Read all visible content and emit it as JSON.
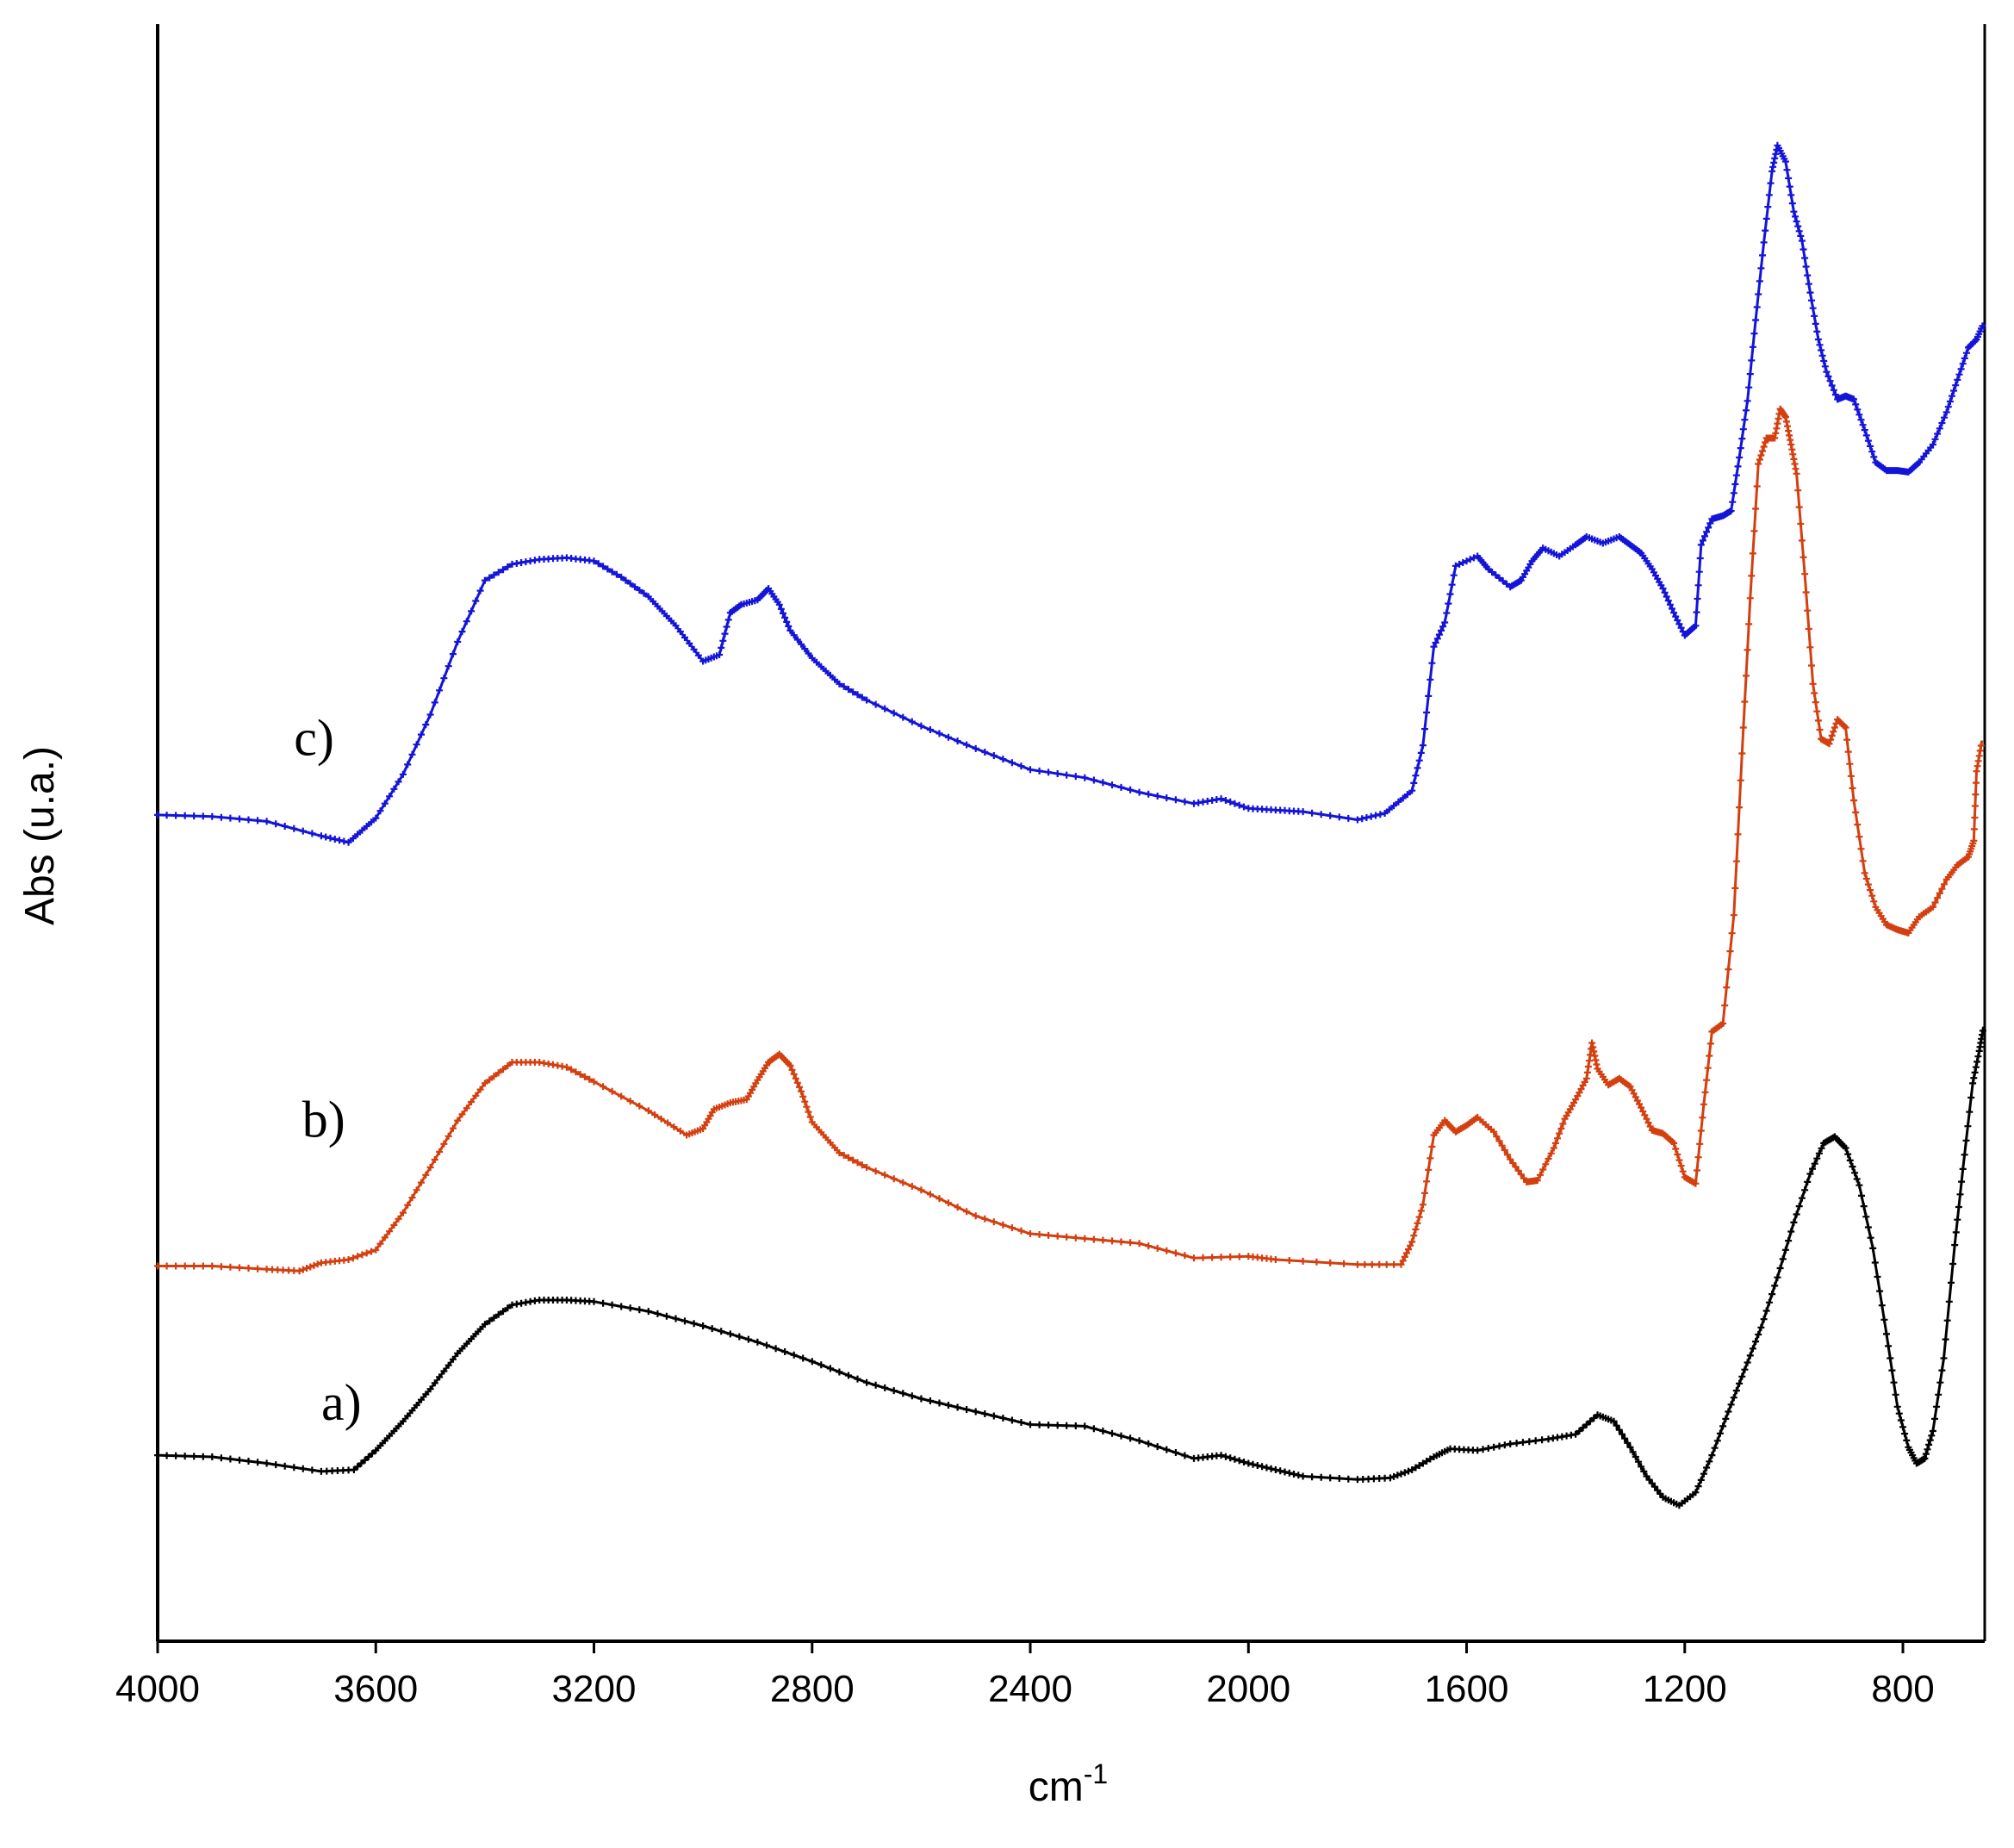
{
  "chart_data": {
    "type": "line",
    "xlabel": "cm",
    "xlabel_sup": "-1",
    "ylabel": "Abs (u.a.)",
    "xlim": [
      4000,
      650
    ],
    "x_reversed": true,
    "ylim": [
      0,
      100
    ],
    "x_ticks": [
      4000,
      3600,
      3200,
      2800,
      2400,
      2000,
      1600,
      1200,
      800
    ],
    "grid": false,
    "y_tick_labels": false,
    "series": [
      {
        "label": "a)",
        "color": "#000000",
        "label_pos": [
          3700,
          13.7
        ],
        "points": [
          [
            4000,
            11.5
          ],
          [
            3900,
            11.4
          ],
          [
            3800,
            11.0
          ],
          [
            3700,
            10.5
          ],
          [
            3640,
            10.6
          ],
          [
            3600,
            11.8
          ],
          [
            3550,
            13.6
          ],
          [
            3500,
            15.6
          ],
          [
            3450,
            17.8
          ],
          [
            3400,
            19.6
          ],
          [
            3350,
            20.8
          ],
          [
            3300,
            21.1
          ],
          [
            3250,
            21.1
          ],
          [
            3200,
            21.0
          ],
          [
            3100,
            20.4
          ],
          [
            3000,
            19.5
          ],
          [
            2900,
            18.5
          ],
          [
            2800,
            17.3
          ],
          [
            2700,
            16.0
          ],
          [
            2600,
            15.0
          ],
          [
            2500,
            14.2
          ],
          [
            2400,
            13.4
          ],
          [
            2300,
            13.3
          ],
          [
            2200,
            12.4
          ],
          [
            2100,
            11.3
          ],
          [
            2050,
            11.5
          ],
          [
            2000,
            11.0
          ],
          [
            1950,
            10.6
          ],
          [
            1900,
            10.2
          ],
          [
            1800,
            10.0
          ],
          [
            1740,
            10.1
          ],
          [
            1700,
            10.6
          ],
          [
            1660,
            11.4
          ],
          [
            1630,
            11.9
          ],
          [
            1580,
            11.8
          ],
          [
            1520,
            12.2
          ],
          [
            1450,
            12.5
          ],
          [
            1400,
            12.8
          ],
          [
            1360,
            14.0
          ],
          [
            1330,
            13.6
          ],
          [
            1300,
            12.0
          ],
          [
            1270,
            10.2
          ],
          [
            1240,
            8.9
          ],
          [
            1210,
            8.4
          ],
          [
            1180,
            9.2
          ],
          [
            1150,
            11.5
          ],
          [
            1120,
            14.2
          ],
          [
            1090,
            16.8
          ],
          [
            1060,
            19.4
          ],
          [
            1030,
            22.5
          ],
          [
            1000,
            25.9
          ],
          [
            970,
            28.9
          ],
          [
            945,
            30.8
          ],
          [
            925,
            31.2
          ],
          [
            905,
            30.5
          ],
          [
            880,
            28.2
          ],
          [
            855,
            24.3
          ],
          [
            830,
            19.0
          ],
          [
            810,
            14.5
          ],
          [
            790,
            12.0
          ],
          [
            775,
            11.0
          ],
          [
            760,
            11.3
          ],
          [
            745,
            13.0
          ],
          [
            725,
            17.5
          ],
          [
            705,
            24.5
          ],
          [
            690,
            29.2
          ],
          [
            672,
            34.5
          ],
          [
            660,
            36.5
          ],
          [
            652,
            38.0
          ]
        ]
      },
      {
        "label": "b)",
        "color": "#d33f0f",
        "label_pos": [
          3735,
          31.2
        ],
        "points": [
          [
            4000,
            23.2
          ],
          [
            3900,
            23.2
          ],
          [
            3800,
            23.0
          ],
          [
            3740,
            22.9
          ],
          [
            3700,
            23.4
          ],
          [
            3650,
            23.6
          ],
          [
            3600,
            24.2
          ],
          [
            3550,
            26.5
          ],
          [
            3500,
            29.3
          ],
          [
            3450,
            32.2
          ],
          [
            3400,
            34.5
          ],
          [
            3350,
            35.8
          ],
          [
            3300,
            35.8
          ],
          [
            3250,
            35.5
          ],
          [
            3200,
            34.6
          ],
          [
            3100,
            32.8
          ],
          [
            3030,
            31.3
          ],
          [
            3000,
            31.7
          ],
          [
            2980,
            32.9
          ],
          [
            2950,
            33.3
          ],
          [
            2920,
            33.5
          ],
          [
            2900,
            34.7
          ],
          [
            2880,
            35.8
          ],
          [
            2860,
            36.3
          ],
          [
            2840,
            35.6
          ],
          [
            2820,
            34.0
          ],
          [
            2800,
            32.1
          ],
          [
            2750,
            30.2
          ],
          [
            2700,
            29.3
          ],
          [
            2600,
            27.9
          ],
          [
            2500,
            26.3
          ],
          [
            2400,
            25.2
          ],
          [
            2300,
            24.9
          ],
          [
            2200,
            24.6
          ],
          [
            2100,
            23.7
          ],
          [
            2000,
            23.8
          ],
          [
            1950,
            23.6
          ],
          [
            1800,
            23.3
          ],
          [
            1720,
            23.3
          ],
          [
            1700,
            24.7
          ],
          [
            1680,
            27.0
          ],
          [
            1660,
            31.3
          ],
          [
            1640,
            32.2
          ],
          [
            1620,
            31.5
          ],
          [
            1600,
            31.9
          ],
          [
            1580,
            32.4
          ],
          [
            1550,
            31.5
          ],
          [
            1520,
            29.8
          ],
          [
            1490,
            28.4
          ],
          [
            1470,
            28.5
          ],
          [
            1440,
            30.5
          ],
          [
            1420,
            32.3
          ],
          [
            1400,
            33.5
          ],
          [
            1380,
            34.8
          ],
          [
            1370,
            37.0
          ],
          [
            1360,
            35.4
          ],
          [
            1340,
            34.4
          ],
          [
            1320,
            34.8
          ],
          [
            1300,
            34.3
          ],
          [
            1280,
            33.0
          ],
          [
            1260,
            31.6
          ],
          [
            1240,
            31.4
          ],
          [
            1220,
            30.8
          ],
          [
            1200,
            28.7
          ],
          [
            1180,
            28.3
          ],
          [
            1165,
            33.2
          ],
          [
            1150,
            37.7
          ],
          [
            1130,
            38.2
          ],
          [
            1110,
            44.9
          ],
          [
            1095,
            54.9
          ],
          [
            1080,
            64.5
          ],
          [
            1065,
            72.8
          ],
          [
            1050,
            74.4
          ],
          [
            1035,
            74.4
          ],
          [
            1025,
            76.2
          ],
          [
            1015,
            75.7
          ],
          [
            1005,
            74.0
          ],
          [
            995,
            72.2
          ],
          [
            980,
            66.0
          ],
          [
            965,
            59.2
          ],
          [
            950,
            55.8
          ],
          [
            935,
            55.5
          ],
          [
            920,
            57.0
          ],
          [
            905,
            56.5
          ],
          [
            890,
            52.0
          ],
          [
            870,
            47.5
          ],
          [
            850,
            45.4
          ],
          [
            830,
            44.3
          ],
          [
            810,
            44.0
          ],
          [
            790,
            43.8
          ],
          [
            770,
            44.8
          ],
          [
            745,
            45.4
          ],
          [
            720,
            47.1
          ],
          [
            700,
            48.0
          ],
          [
            680,
            48.5
          ],
          [
            670,
            49.5
          ],
          [
            665,
            53.8
          ],
          [
            655,
            55.7
          ]
        ]
      },
      {
        "label": "c)",
        "color": "#1414d8",
        "label_pos": [
          3750,
          54.8
        ],
        "points": [
          [
            4000,
            51.1
          ],
          [
            3900,
            51.0
          ],
          [
            3800,
            50.7
          ],
          [
            3700,
            49.8
          ],
          [
            3650,
            49.4
          ],
          [
            3600,
            50.9
          ],
          [
            3550,
            53.6
          ],
          [
            3500,
            57.3
          ],
          [
            3450,
            61.8
          ],
          [
            3400,
            65.6
          ],
          [
            3350,
            66.6
          ],
          [
            3300,
            66.9
          ],
          [
            3250,
            67.0
          ],
          [
            3200,
            66.8
          ],
          [
            3150,
            65.8
          ],
          [
            3100,
            64.6
          ],
          [
            3050,
            62.8
          ],
          [
            3000,
            60.6
          ],
          [
            2970,
            61.0
          ],
          [
            2950,
            63.6
          ],
          [
            2930,
            64.1
          ],
          [
            2900,
            64.4
          ],
          [
            2880,
            65.1
          ],
          [
            2860,
            64.1
          ],
          [
            2840,
            62.5
          ],
          [
            2800,
            60.8
          ],
          [
            2750,
            59.2
          ],
          [
            2700,
            58.2
          ],
          [
            2600,
            56.6
          ],
          [
            2500,
            55.2
          ],
          [
            2400,
            53.9
          ],
          [
            2300,
            53.4
          ],
          [
            2200,
            52.5
          ],
          [
            2100,
            51.8
          ],
          [
            2050,
            52.1
          ],
          [
            2000,
            51.5
          ],
          [
            1950,
            51.4
          ],
          [
            1900,
            51.3
          ],
          [
            1800,
            50.8
          ],
          [
            1750,
            51.2
          ],
          [
            1700,
            52.6
          ],
          [
            1680,
            55.4
          ],
          [
            1660,
            61.5
          ],
          [
            1640,
            63.0
          ],
          [
            1620,
            66.5
          ],
          [
            1580,
            67.1
          ],
          [
            1560,
            66.3
          ],
          [
            1520,
            65.2
          ],
          [
            1500,
            65.6
          ],
          [
            1480,
            66.8
          ],
          [
            1460,
            67.6
          ],
          [
            1430,
            67.1
          ],
          [
            1400,
            67.8
          ],
          [
            1380,
            68.3
          ],
          [
            1350,
            67.9
          ],
          [
            1320,
            68.3
          ],
          [
            1300,
            67.8
          ],
          [
            1280,
            67.3
          ],
          [
            1260,
            66.3
          ],
          [
            1240,
            65.1
          ],
          [
            1220,
            63.6
          ],
          [
            1200,
            62.2
          ],
          [
            1180,
            62.8
          ],
          [
            1170,
            67.8
          ],
          [
            1150,
            69.4
          ],
          [
            1130,
            69.6
          ],
          [
            1115,
            69.9
          ],
          [
            1100,
            73.2
          ],
          [
            1085,
            76.7
          ],
          [
            1070,
            81.7
          ],
          [
            1055,
            86.5
          ],
          [
            1040,
            90.9
          ],
          [
            1030,
            92.5
          ],
          [
            1015,
            91.5
          ],
          [
            1000,
            88.4
          ],
          [
            985,
            86.6
          ],
          [
            970,
            83.4
          ],
          [
            955,
            80.5
          ],
          [
            940,
            78.5
          ],
          [
            920,
            76.8
          ],
          [
            905,
            77.0
          ],
          [
            890,
            76.8
          ],
          [
            870,
            74.9
          ],
          [
            850,
            72.9
          ],
          [
            830,
            72.4
          ],
          [
            810,
            72.4
          ],
          [
            790,
            72.3
          ],
          [
            770,
            72.9
          ],
          [
            745,
            74.0
          ],
          [
            720,
            76.0
          ],
          [
            700,
            78.0
          ],
          [
            680,
            80.0
          ],
          [
            665,
            80.5
          ],
          [
            652,
            81.5
          ]
        ]
      }
    ]
  }
}
